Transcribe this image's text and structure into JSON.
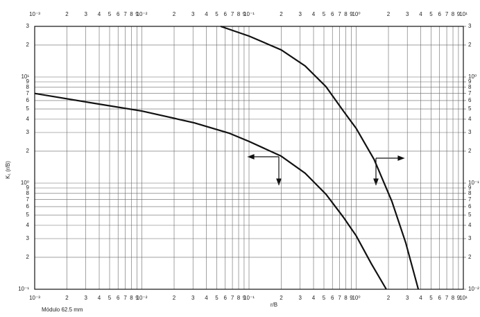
{
  "chart_data": {
    "type": "line",
    "xlabel": "r/B",
    "ylabel": "K₁ (r/B)",
    "note": "Módulo 62.5 mm",
    "xscale": "log",
    "yscale": "log",
    "grid": true,
    "color": "#111111",
    "xlim": [
      0.001,
      10
    ],
    "ylim": [
      0.1,
      30
    ],
    "y2lim": [
      0.01,
      3
    ],
    "xticks": [
      {
        "value": 0.001,
        "label": "10⁻³"
      },
      {
        "value": 0.002,
        "label": "2"
      },
      {
        "value": 0.003,
        "label": "3"
      },
      {
        "value": 0.004,
        "label": "4"
      },
      {
        "value": 0.005,
        "label": "5"
      },
      {
        "value": 0.006,
        "label": "6"
      },
      {
        "value": 0.007,
        "label": "7"
      },
      {
        "value": 0.008,
        "label": "8"
      },
      {
        "value": 0.009,
        "label": "9"
      },
      {
        "value": 0.01,
        "label": "10⁻²"
      },
      {
        "value": 0.02,
        "label": "2"
      },
      {
        "value": 0.03,
        "label": "3"
      },
      {
        "value": 0.04,
        "label": "4"
      },
      {
        "value": 0.05,
        "label": "5"
      },
      {
        "value": 0.06,
        "label": "6"
      },
      {
        "value": 0.07,
        "label": "7"
      },
      {
        "value": 0.08,
        "label": "8"
      },
      {
        "value": 0.09,
        "label": "9"
      },
      {
        "value": 0.1,
        "label": "10⁻¹"
      },
      {
        "value": 0.2,
        "label": "2"
      },
      {
        "value": 0.3,
        "label": "3"
      },
      {
        "value": 0.4,
        "label": "4"
      },
      {
        "value": 0.5,
        "label": "5"
      },
      {
        "value": 0.6,
        "label": "6"
      },
      {
        "value": 0.7,
        "label": "7"
      },
      {
        "value": 0.8,
        "label": "8"
      },
      {
        "value": 0.9,
        "label": "9"
      },
      {
        "value": 1,
        "label": "10⁰"
      },
      2,
      3,
      4,
      5,
      6,
      7,
      8,
      9,
      {
        "value": 10,
        "label": "10¹"
      }
    ],
    "yticks": [
      {
        "value": 0.1,
        "label": "10⁻¹"
      },
      {
        "value": 0.2,
        "label": "2"
      },
      {
        "value": 0.3,
        "label": "3"
      },
      {
        "value": 0.4,
        "label": "4"
      },
      {
        "value": 0.5,
        "label": "5"
      },
      {
        "value": 0.6,
        "label": "6"
      },
      {
        "value": 0.7,
        "label": "7"
      },
      {
        "value": 0.8,
        "label": "8"
      },
      {
        "value": 0.9,
        "label": "9"
      },
      {
        "value": 1,
        "label": "10⁰"
      },
      2,
      3,
      4,
      5,
      6,
      7,
      8,
      9,
      {
        "value": 10,
        "label": "10¹"
      },
      {
        "value": 20,
        "label": "2"
      },
      {
        "value": 30,
        "label": "3"
      }
    ],
    "y2ticks": [
      {
        "value": 0.01,
        "label": "10⁻²"
      },
      {
        "value": 0.02,
        "label": "2"
      },
      {
        "value": 0.03,
        "label": "3"
      },
      {
        "value": 0.04,
        "label": "4"
      },
      {
        "value": 0.05,
        "label": "5"
      },
      {
        "value": 0.06,
        "label": "6"
      },
      {
        "value": 0.07,
        "label": "7"
      },
      {
        "value": 0.08,
        "label": "8"
      },
      {
        "value": 0.09,
        "label": "9"
      },
      {
        "value": 0.1,
        "label": "10⁻¹"
      },
      {
        "value": 0.2,
        "label": "2"
      },
      {
        "value": 0.3,
        "label": "3"
      },
      {
        "value": 0.4,
        "label": "4"
      },
      {
        "value": 0.5,
        "label": "5"
      },
      {
        "value": 0.6,
        "label": "6"
      },
      {
        "value": 0.7,
        "label": "7"
      },
      {
        "value": 0.8,
        "label": "8"
      },
      {
        "value": 0.9,
        "label": "9"
      },
      {
        "value": 1,
        "label": "10⁰"
      },
      2,
      3
    ],
    "series": [
      {
        "x": [
          0.001,
          0.0033,
          0.01,
          0.0308,
          0.065,
          0.1,
          0.199,
          0.334,
          0.523,
          0.759,
          1.0,
          1.38,
          1.91
        ],
        "values": [
          7.0,
          5.73,
          4.78,
          3.7,
          2.96,
          2.47,
          1.8,
          1.24,
          0.785,
          0.478,
          0.319,
          0.175,
          0.1
        ]
      },
      {
        "x": [
          0.0544,
          0.1,
          0.2,
          0.334,
          0.523,
          0.759,
          1.0,
          1.47,
          2.15,
          2.9,
          3.8
        ],
        "values": [
          30,
          24.3,
          18.0,
          12.7,
          8.1,
          4.78,
          3.28,
          1.67,
          0.676,
          0.274,
          0.1
        ]
      }
    ]
  }
}
